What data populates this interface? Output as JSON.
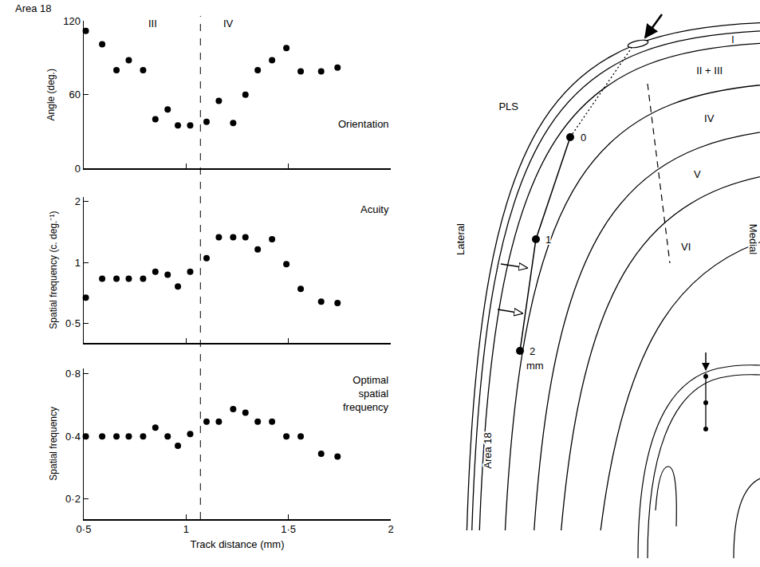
{
  "chart_data": [
    {
      "type": "scatter",
      "title": "Orientation",
      "y_label": "Angle (deg.)",
      "x": [
        0.51,
        0.59,
        0.66,
        0.72,
        0.79,
        0.85,
        0.91,
        0.96,
        1.02,
        1.1,
        1.16,
        1.23,
        1.29,
        1.35,
        1.42,
        1.49,
        1.56,
        1.66,
        1.74
      ],
      "values": [
        112,
        101,
        80,
        88,
        80,
        40,
        48,
        35,
        35,
        38,
        55,
        37,
        60,
        80,
        88,
        98,
        79,
        79,
        82
      ],
      "color": "#000000",
      "marker": "circle",
      "xlim": [
        0.5,
        2
      ],
      "xticks": [
        {
          "value": 0.5,
          "label": "0·5"
        },
        1,
        {
          "value": 1.5,
          "label": "1·5"
        },
        2
      ],
      "ylim": [
        0,
        120
      ],
      "yticks": [
        0,
        60,
        120
      ],
      "grid": false,
      "tick_labels": "y"
    },
    {
      "type": "scatter",
      "title": "Acuity",
      "y_label": "Spatial frequency (c. deg.⁻¹)",
      "x": [
        0.51,
        0.59,
        0.66,
        0.72,
        0.79,
        0.85,
        0.91,
        0.96,
        1.02,
        1.1,
        1.16,
        1.23,
        1.29,
        1.35,
        1.42,
        1.49,
        1.56,
        1.66,
        1.74
      ],
      "values": [
        0.67,
        0.83,
        0.83,
        0.83,
        0.83,
        0.9,
        0.87,
        0.76,
        0.9,
        1.05,
        1.33,
        1.33,
        1.33,
        1.16,
        1.3,
        0.98,
        0.74,
        0.64,
        0.63
      ],
      "color": "#000000",
      "marker": "circle",
      "xlim": [
        0.5,
        2
      ],
      "xticks": [
        {
          "value": 0.5,
          "label": "0·5"
        },
        1,
        {
          "value": 1.5,
          "label": "1·5"
        },
        2
      ],
      "ylim": [
        0.4,
        2.1
      ],
      "yticks": [
        {
          "value": 0.5,
          "label": "0·5"
        },
        1,
        2
      ],
      "log": "y",
      "grid": false,
      "tick_labels": "y"
    },
    {
      "type": "scatter",
      "title": "Optimal spatial frequency",
      "y_label": "Spatial frequency",
      "x_label": "Track distance (mm)",
      "x": [
        0.51,
        0.59,
        0.66,
        0.72,
        0.79,
        0.85,
        0.91,
        0.96,
        1.02,
        1.1,
        1.16,
        1.23,
        1.29,
        1.35,
        1.42,
        1.49,
        1.56,
        1.66,
        1.74
      ],
      "values": [
        0.4,
        0.4,
        0.4,
        0.4,
        0.4,
        0.44,
        0.4,
        0.36,
        0.41,
        0.47,
        0.47,
        0.54,
        0.52,
        0.47,
        0.47,
        0.4,
        0.4,
        0.33,
        0.32
      ],
      "color": "#000000",
      "marker": "circle",
      "xlim": [
        0.5,
        2
      ],
      "xticks": [
        {
          "value": 0.5,
          "label": "0·5"
        },
        1,
        {
          "value": 1.5,
          "label": "1·5"
        },
        2
      ],
      "ylim": [
        0.16,
        0.85
      ],
      "yticks": [
        {
          "value": 0.2,
          "label": "0·2"
        },
        {
          "value": 0.4,
          "label": "0·4"
        },
        {
          "value": 0.8,
          "label": "0·8"
        }
      ],
      "log": "y",
      "grid": false,
      "tick_labels": true
    }
  ],
  "figure": {
    "heading": "Area 18",
    "boundary_x": 1.07,
    "boundary_labels": [
      "III",
      "IV"
    ]
  },
  "diagram": {
    "layers": [
      "I",
      "II + III",
      "IV",
      "V",
      "VI"
    ],
    "sulcus": "PLS",
    "lateral": "Lateral",
    "medial": "Medial",
    "area": "Area 18",
    "track_marks": [
      "0",
      "1",
      "2"
    ],
    "track_unit": "mm"
  }
}
